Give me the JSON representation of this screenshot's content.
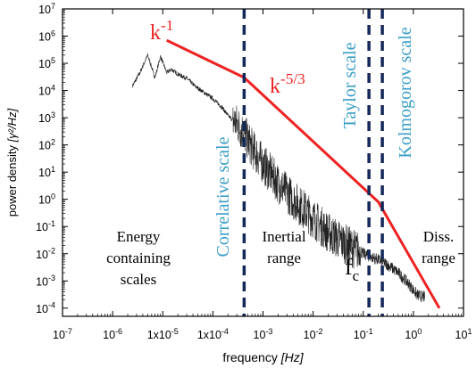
{
  "chart_data": {
    "type": "line",
    "title": "",
    "xlabel_prefix": "frequency ",
    "xlabel_unit": "[Hz]",
    "ylabel_prefix": "power density ",
    "ylabel_unit": "[γ²/Hz]",
    "xscale": "log",
    "yscale": "log",
    "xlim": [
      1e-07,
      10
    ],
    "ylim": [
      5e-05,
      10000000
    ],
    "x_ticks": [
      {
        "v": 1e-07,
        "base": "10",
        "exp": "-7"
      },
      {
        "v": 1e-06,
        "base": "10",
        "exp": "-6"
      },
      {
        "v": 1e-05,
        "base": "1x10",
        "exp": "-5"
      },
      {
        "v": 0.0001,
        "base": "1x10",
        "exp": "-4"
      },
      {
        "v": 0.001,
        "base": "10",
        "exp": "-3"
      },
      {
        "v": 0.01,
        "base": "10",
        "exp": "-2"
      },
      {
        "v": 0.1,
        "base": "10",
        "exp": "-1"
      },
      {
        "v": 1,
        "base": "10",
        "exp": "0"
      },
      {
        "v": 10,
        "base": "10",
        "exp": "1"
      }
    ],
    "y_ticks": [
      {
        "v": 0.0001,
        "base": "10",
        "exp": "-4"
      },
      {
        "v": 0.001,
        "base": "10",
        "exp": "-3"
      },
      {
        "v": 0.01,
        "base": "10",
        "exp": "-2"
      },
      {
        "v": 0.1,
        "base": "10",
        "exp": "-1"
      },
      {
        "v": 1,
        "base": "10",
        "exp": "0"
      },
      {
        "v": 10,
        "base": "10",
        "exp": "1"
      },
      {
        "v": 100,
        "base": "10",
        "exp": "2"
      },
      {
        "v": 1000,
        "base": "10",
        "exp": "3"
      },
      {
        "v": 10000,
        "base": "10",
        "exp": "4"
      },
      {
        "v": 100000,
        "base": "10",
        "exp": "5"
      },
      {
        "v": 1000000,
        "base": "10",
        "exp": "6"
      },
      {
        "v": 10000000,
        "base": "10",
        "exp": "7"
      }
    ],
    "spectrum": {
      "color": "#222222",
      "x": [
        2.5e-06,
        3.5e-06,
        5e-06,
        7e-06,
        9e-06,
        1.2e-05,
        1.5e-05,
        2e-05,
        3e-05,
        4.5e-05,
        7e-05,
        0.0001,
        0.00015,
        0.0002,
        0.0003,
        0.0004,
        0.0006,
        0.001,
        0.002,
        0.004,
        0.01,
        0.02,
        0.05,
        0.1,
        0.2,
        0.3,
        0.5,
        0.8,
        1.2,
        1.7
      ],
      "y": [
        15000,
        45000,
        200000,
        30000,
        180000,
        45000,
        60000,
        40000,
        28000,
        14000,
        8000,
        5000,
        2500,
        1200,
        600,
        300,
        80,
        20,
        4,
        1,
        0.2,
        0.06,
        0.02,
        0.01,
        0.006,
        0.004,
        0.002,
        0.0008,
        0.0003,
        0.00025
      ],
      "noise_band": [
        0.00025,
        0.08
      ]
    },
    "fit_line": {
      "color": "#ee2222",
      "x": [
        1.2e-05,
        0.00042,
        0.2,
        3.3
      ],
      "y": [
        700000,
        30000,
        0.8,
        0.0001
      ],
      "labels": [
        {
          "base": "k",
          "exp": "-1"
        },
        {
          "base": "k",
          "exp": "-5/3"
        }
      ]
    },
    "scale_lines": {
      "color": "#14285a",
      "x": [
        0.00042,
        0.13,
        0.24
      ]
    },
    "annotations": {
      "vertical_labels": [
        "Correlative  scale",
        "Taylor  scale",
        "Kolmogorov  scale"
      ],
      "vertical_color": "#3a9ec8",
      "regions": [
        {
          "lines": [
            "Energy",
            "containing",
            "scales"
          ]
        },
        {
          "lines": [
            "Inertial",
            "range"
          ]
        },
        {
          "lines": [
            "Diss.",
            "range"
          ]
        }
      ],
      "fc": {
        "base": "f",
        "sub": "c"
      }
    }
  }
}
